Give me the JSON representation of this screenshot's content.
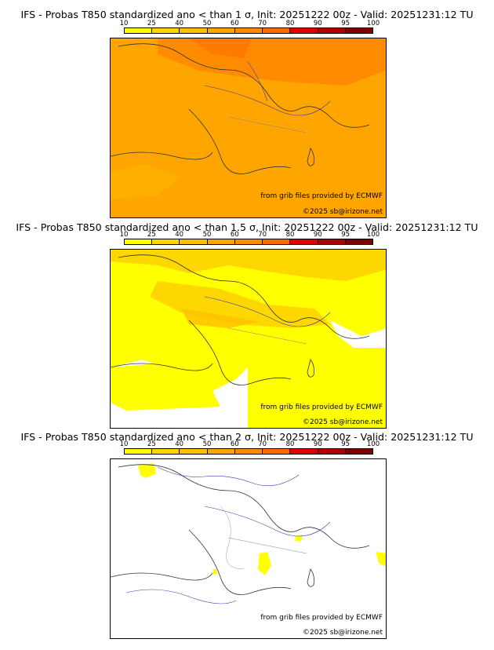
{
  "colorbar": {
    "ticks": [
      "10",
      "25",
      "40",
      "50",
      "60",
      "70",
      "80",
      "90",
      "95",
      "100"
    ],
    "colors": [
      "#ffff00",
      "#ffd700",
      "#ffbf00",
      "#ffa500",
      "#ff8c00",
      "#ff6a00",
      "#e00000",
      "#b00000",
      "#800000"
    ]
  },
  "panels": [
    {
      "title": "IFS - Probas T850  standardized ano < than 1 σ, Init: 20251222 00z - Valid: 20251231:12 TU",
      "credit_grib": "from grib files provided by ECMWF",
      "credit_site": "©2025 sb@irizone.net"
    },
    {
      "title": "IFS - Probas T850  standardized ano < than 1.5 σ, Init: 20251222 00z - Valid: 20251231:12 TU",
      "credit_grib": "from grib files provided by ECMWF",
      "credit_site": "©2025 sb@irizone.net"
    },
    {
      "title": "IFS - Probas T850  standardized ano < than 2 σ, Init: 20251222 00z - Valid: 20251231:12 TU",
      "credit_grib": "from grib files provided by ECMWF",
      "credit_site": "©2025 sb@irizone.net"
    }
  ]
}
